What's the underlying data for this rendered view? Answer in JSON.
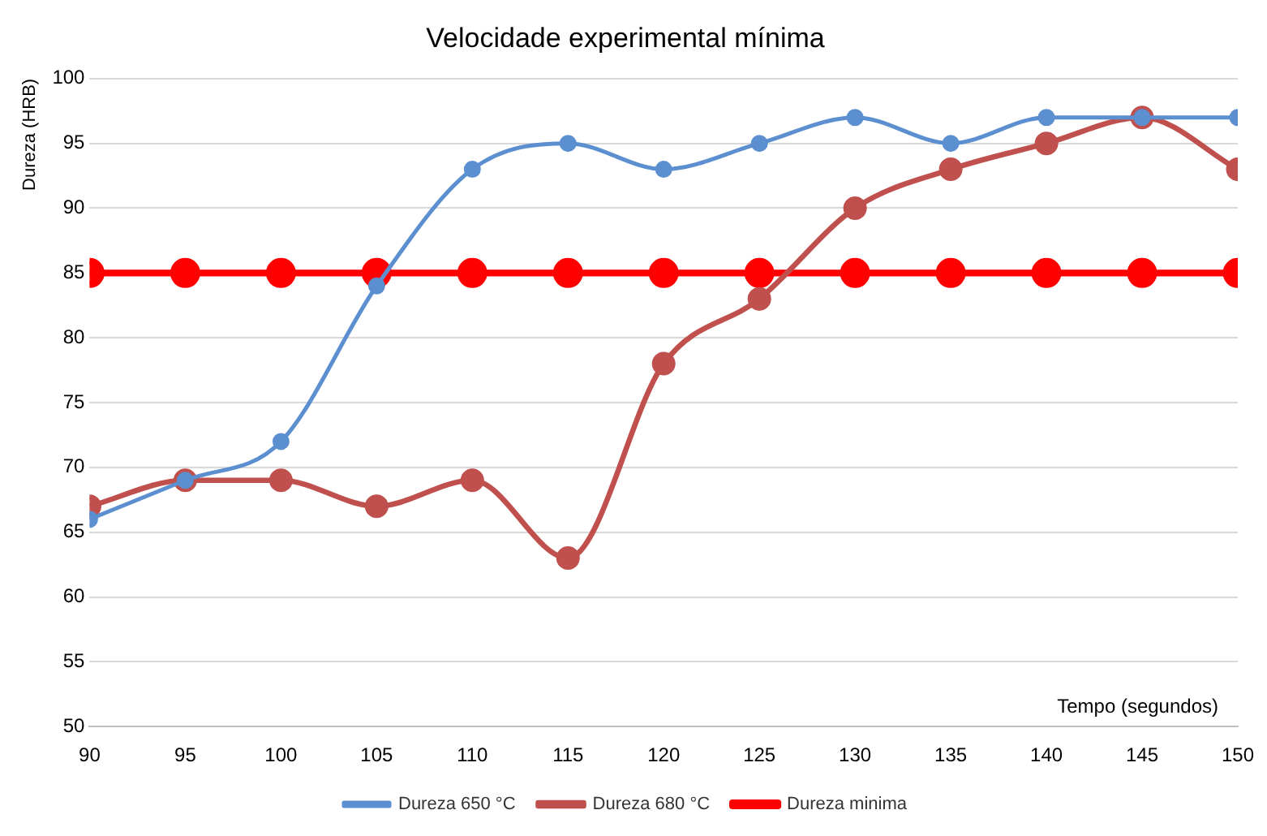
{
  "chart_data": {
    "type": "line",
    "title": "Velocidade experimental mínima",
    "xlabel": "Tempo (segundos)",
    "ylabel": "Dureza (HRB)",
    "x": [
      90,
      95,
      100,
      105,
      110,
      115,
      120,
      125,
      130,
      135,
      140,
      145,
      150
    ],
    "series": [
      {
        "name": "Dureza 650 °C",
        "color": "#5b8fd0",
        "values": [
          66,
          69,
          72,
          84,
          93,
          95,
          93,
          95,
          97,
          95,
          97,
          97,
          97
        ]
      },
      {
        "name": "Dureza 680 °C",
        "color": "#c0504d",
        "values": [
          67,
          69,
          69,
          67,
          69,
          63,
          78,
          83,
          90,
          93,
          95,
          97,
          93
        ]
      },
      {
        "name": "Dureza minima",
        "color": "#ff0000",
        "values": [
          85,
          85,
          85,
          85,
          85,
          85,
          85,
          85,
          85,
          85,
          85,
          85,
          85
        ]
      }
    ],
    "xlim": [
      90,
      150
    ],
    "xticks": [
      90,
      95,
      100,
      105,
      110,
      115,
      120,
      125,
      130,
      135,
      140,
      145,
      150
    ],
    "ylim": [
      50,
      100
    ],
    "yticks": [
      50,
      55,
      60,
      65,
      70,
      75,
      80,
      85,
      90,
      95,
      100
    ],
    "grid": "y",
    "legend": "bottom",
    "marker": "circle",
    "line_style": "solid"
  }
}
